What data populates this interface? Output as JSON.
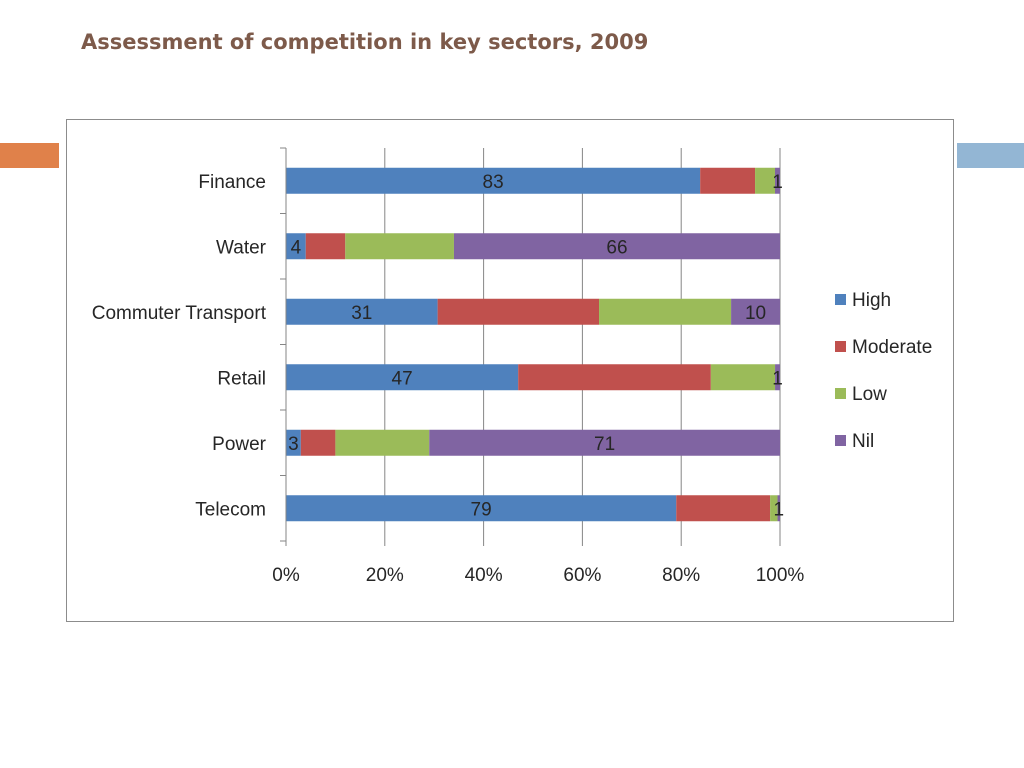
{
  "slide": {
    "title": "Assessment of competition in key sectors, 2009",
    "accent_left_color": "#e0814a",
    "accent_right_color": "#93b6d4"
  },
  "chart_data": {
    "type": "bar",
    "orientation": "horizontal",
    "stacked": "percent",
    "title": "",
    "xlabel": "",
    "ylabel": "",
    "categories": [
      "Finance",
      "Water",
      "Commuter Transport",
      "Retail",
      "Power",
      "Telecom"
    ],
    "series": [
      {
        "name": "High",
        "color": "#4f81bd",
        "values": [
          83,
          4,
          31,
          47,
          3,
          79
        ],
        "data_labels": [
          "83",
          "4",
          "31",
          "47",
          "3",
          "79"
        ]
      },
      {
        "name": "Moderate",
        "color": "#c0504d",
        "values": [
          11,
          8,
          33,
          39,
          7,
          19
        ],
        "data_labels": [
          "",
          "",
          "",
          "",
          "",
          ""
        ]
      },
      {
        "name": "Low",
        "color": "#9bbb59",
        "values": [
          4,
          22,
          27,
          13,
          19,
          1.5
        ],
        "data_labels": [
          "",
          "",
          "",
          "",
          "",
          ""
        ]
      },
      {
        "name": "Nil",
        "color": "#8064a2",
        "values": [
          1,
          66,
          10,
          1,
          71,
          0.5
        ],
        "data_labels": [
          "1",
          "66",
          "10",
          "1",
          "71",
          "1"
        ]
      }
    ],
    "xticks": [
      "0%",
      "20%",
      "40%",
      "60%",
      "80%",
      "100%"
    ],
    "xlim": [
      0,
      100
    ],
    "grid": "vertical",
    "legend_position": "right"
  }
}
